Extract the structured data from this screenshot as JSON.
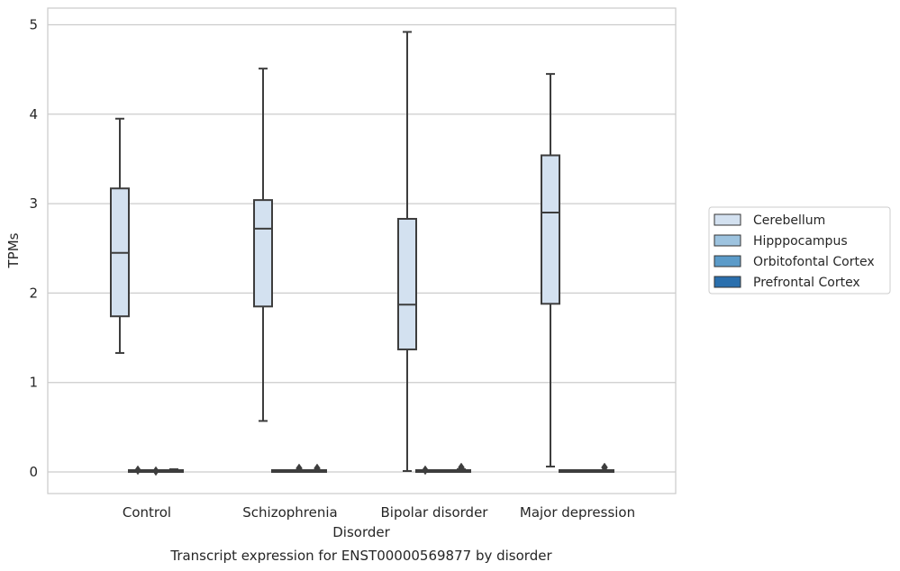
{
  "chart_data": {
    "type": "box",
    "title": "",
    "caption": "Transcript expression for ENST00000569877 by disorder",
    "xlabel": "Disorder",
    "ylabel": "TPMs",
    "ylim": [
      -0.25,
      5.2
    ],
    "yticks": [
      0,
      1,
      2,
      3,
      4,
      5
    ],
    "grid": "horizontal",
    "legend_position": "right",
    "categories": [
      "Control",
      "Schizophrenia",
      "Bipolar disorder",
      "Major depression"
    ],
    "series": [
      {
        "name": "Cerebellum",
        "color": "#d3e1f0",
        "boxes": [
          {
            "whislo": 1.33,
            "q1": 1.74,
            "med": 2.45,
            "q3": 3.17,
            "whishi": 3.95,
            "fliers": []
          },
          {
            "whislo": 0.57,
            "q1": 1.85,
            "med": 2.72,
            "q3": 3.04,
            "whishi": 4.51,
            "fliers": []
          },
          {
            "whislo": 0.01,
            "q1": 1.37,
            "med": 1.87,
            "q3": 2.83,
            "whishi": 4.92,
            "fliers": []
          },
          {
            "whislo": 0.06,
            "q1": 1.88,
            "med": 2.9,
            "q3": 3.54,
            "whishi": 4.45,
            "fliers": []
          }
        ]
      },
      {
        "name": "Hipppocampus",
        "color": "#9dc3df",
        "boxes": [
          {
            "whislo": 0.0,
            "q1": 0.0,
            "med": 0.0,
            "q3": 0.0,
            "whishi": 0.0,
            "fliers": [
              0.02
            ]
          },
          {
            "whislo": 0.0,
            "q1": 0.0,
            "med": 0.0,
            "q3": 0.01,
            "whishi": 0.01,
            "fliers": []
          },
          {
            "whislo": 0.0,
            "q1": 0.0,
            "med": 0.0,
            "q3": 0.0,
            "whishi": 0.0,
            "fliers": [
              0.02
            ]
          },
          {
            "whislo": 0.0,
            "q1": 0.0,
            "med": 0.0,
            "q3": 0.01,
            "whishi": 0.01,
            "fliers": []
          }
        ]
      },
      {
        "name": "Orbitofontal Cortex",
        "color": "#5b9bc9",
        "boxes": [
          {
            "whislo": 0.0,
            "q1": 0.0,
            "med": 0.0,
            "q3": 0.0,
            "whishi": 0.0,
            "fliers": [
              0.01
            ]
          },
          {
            "whislo": 0.0,
            "q1": 0.0,
            "med": 0.01,
            "q3": 0.01,
            "whishi": 0.02,
            "fliers": [
              0.04
            ]
          },
          {
            "whislo": 0.0,
            "q1": 0.0,
            "med": 0.01,
            "q3": 0.02,
            "whishi": 0.02,
            "fliers": []
          },
          {
            "whislo": 0.0,
            "q1": 0.0,
            "med": 0.01,
            "q3": 0.01,
            "whishi": 0.02,
            "fliers": []
          }
        ]
      },
      {
        "name": "Prefrontal Cortex",
        "color": "#2a6fad",
        "boxes": [
          {
            "whislo": 0.0,
            "q1": 0.0,
            "med": 0.01,
            "q3": 0.02,
            "whishi": 0.03,
            "fliers": []
          },
          {
            "whislo": 0.0,
            "q1": 0.0,
            "med": 0.01,
            "q3": 0.02,
            "whishi": 0.02,
            "fliers": [
              0.04
            ]
          },
          {
            "whislo": 0.0,
            "q1": 0.0,
            "med": 0.01,
            "q3": 0.02,
            "whishi": 0.03,
            "fliers": [
              0.05
            ]
          },
          {
            "whislo": 0.0,
            "q1": 0.0,
            "med": 0.01,
            "q3": 0.02,
            "whishi": 0.02,
            "fliers": [
              0.05
            ]
          }
        ]
      }
    ]
  },
  "colors": {
    "grid": "#cccccc",
    "frame": "#cccccc",
    "box_edge": "#3d3d3d",
    "background": "#ffffff"
  }
}
